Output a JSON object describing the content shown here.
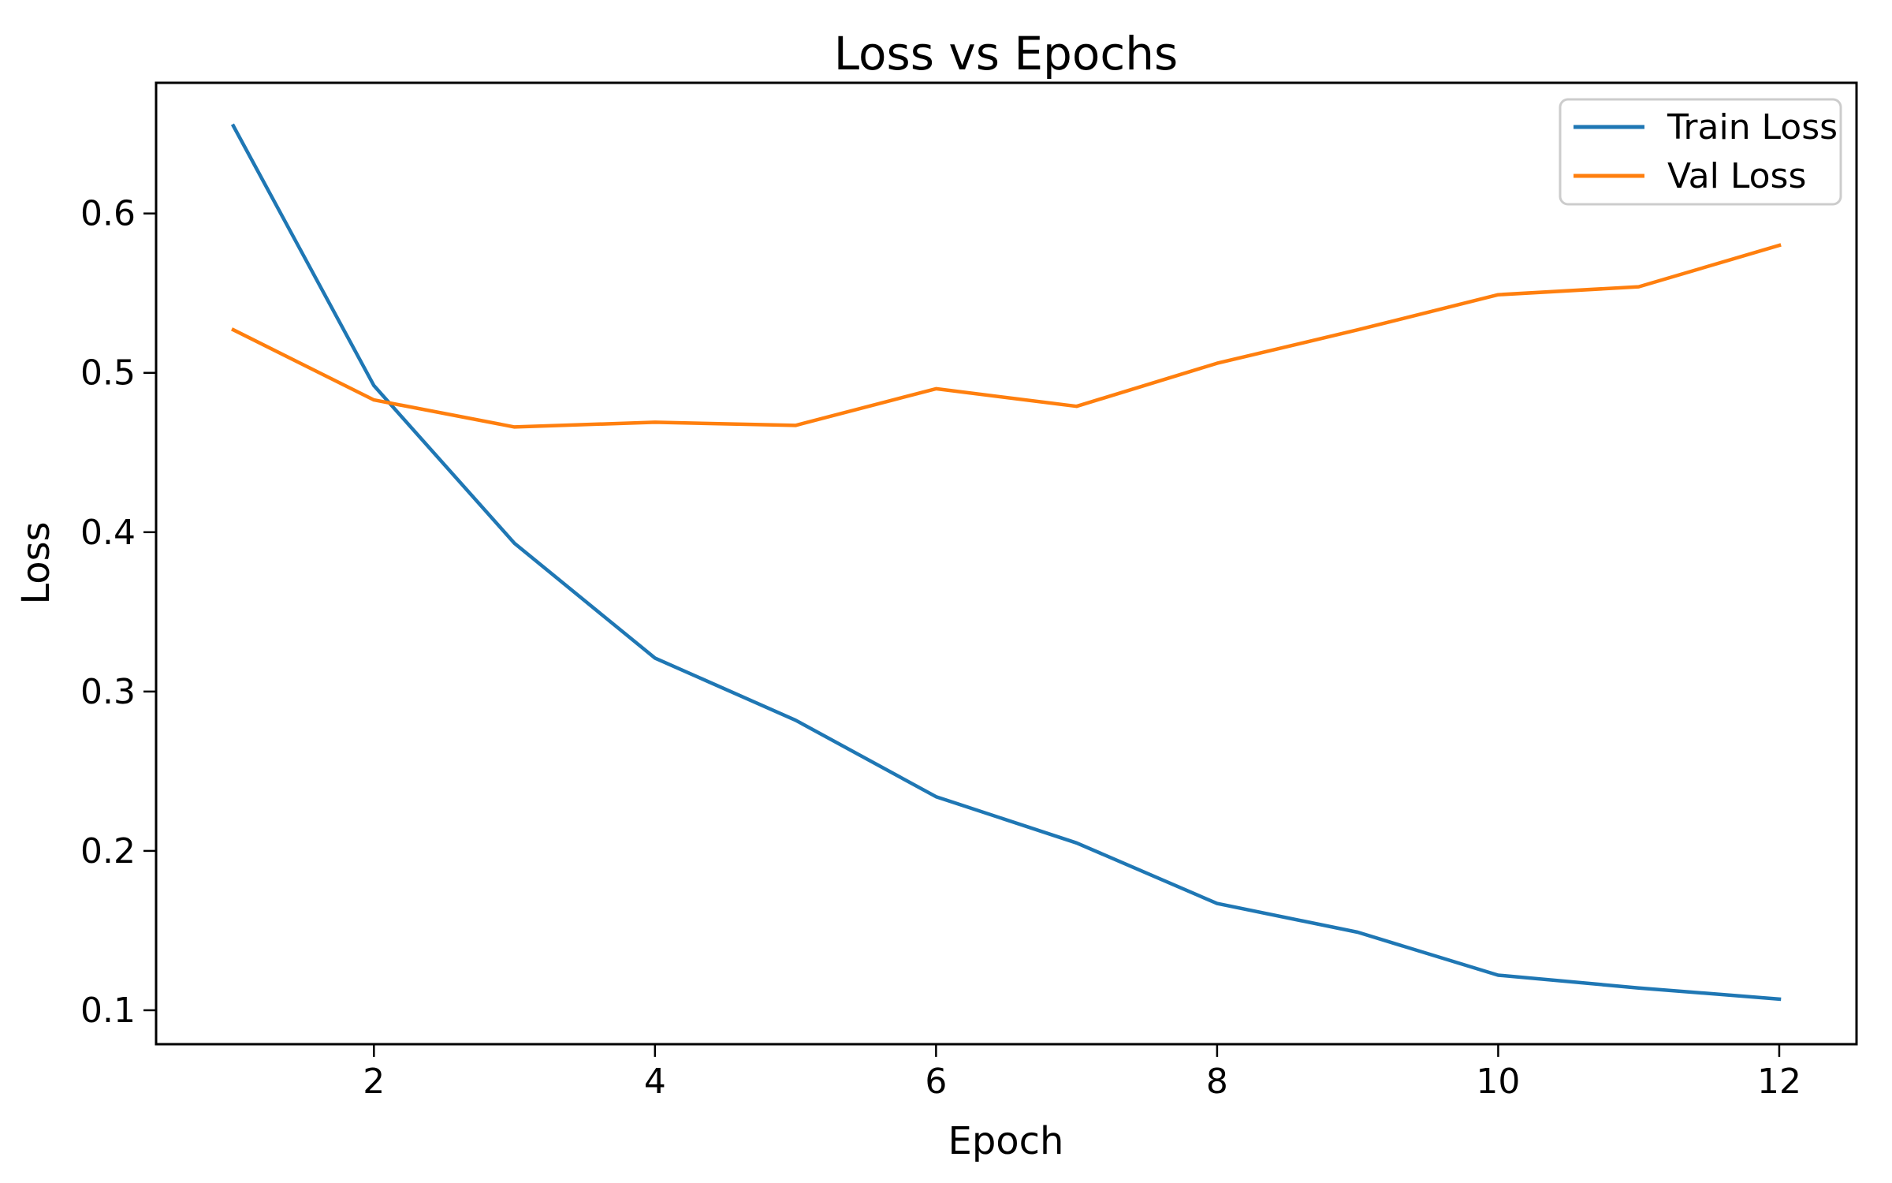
{
  "chart_data": {
    "type": "line",
    "title": "Loss vs Epochs",
    "xlabel": "Epoch",
    "ylabel": "Loss",
    "x": [
      1,
      2,
      3,
      4,
      5,
      6,
      7,
      8,
      9,
      10,
      11,
      12
    ],
    "series": [
      {
        "name": "Train Loss",
        "color": "#1f77b4",
        "values": [
          0.655,
          0.492,
          0.393,
          0.321,
          0.282,
          0.234,
          0.205,
          0.167,
          0.149,
          0.122,
          0.114,
          0.107
        ]
      },
      {
        "name": "Val Loss",
        "color": "#ff7f0e",
        "values": [
          0.527,
          0.483,
          0.466,
          0.469,
          0.467,
          0.49,
          0.479,
          0.506,
          0.527,
          0.549,
          0.554,
          0.58
        ]
      }
    ],
    "xticks": [
      2,
      4,
      6,
      8,
      10,
      12
    ],
    "yticks": [
      0.1,
      0.2,
      0.3,
      0.4,
      0.5,
      0.6
    ],
    "xlim": [
      0.45,
      12.55
    ],
    "ylim": [
      0.0787,
      0.682
    ],
    "grid": false,
    "legend": {
      "position": "upper right",
      "entries": [
        "Train Loss",
        "Val Loss"
      ]
    }
  }
}
